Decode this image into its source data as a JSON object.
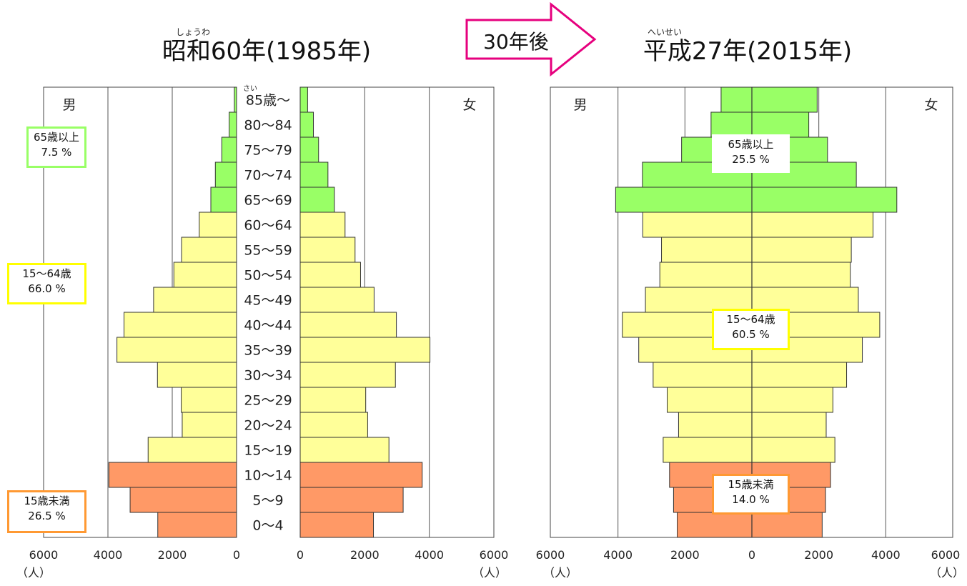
{
  "title_1985": {
    "ruby": "しょうわ",
    "text": "昭和60年(1985年)"
  },
  "title_2015": {
    "ruby": "へいせい",
    "text": "平成27年(2015年)"
  },
  "arrow_label": "30年後",
  "colors": {
    "senior": "#99ff66",
    "working": "#ffff99",
    "child": "#ff9966",
    "box_senior": "#99ff66",
    "box_working": "#ffff00",
    "box_child": "#ff9933",
    "arrow": "#e6007e"
  },
  "age_ruby": "さい",
  "chart_data": [
    {
      "type": "bar",
      "title": "昭和60年(1985年)",
      "orientation": "horizontal population pyramid",
      "categories": [
        "0〜4",
        "5〜9",
        "10〜14",
        "15〜19",
        "20〜24",
        "25〜29",
        "30〜34",
        "35〜39",
        "40〜44",
        "45〜49",
        "50〜54",
        "55〜59",
        "60〜64",
        "65〜69",
        "70〜74",
        "75〜79",
        "80〜84",
        "85歳〜"
      ],
      "series": [
        {
          "name": "男",
          "values": [
            2450,
            3310,
            3970,
            2750,
            1690,
            1720,
            2460,
            3720,
            3500,
            2580,
            1950,
            1710,
            1160,
            800,
            660,
            460,
            230,
            70
          ]
        },
        {
          "name": "女",
          "values": [
            2270,
            3190,
            3780,
            2750,
            2090,
            2030,
            2950,
            4020,
            2980,
            2290,
            1870,
            1700,
            1390,
            1060,
            860,
            570,
            410,
            230
          ]
        }
      ],
      "xlim": [
        0,
        6000
      ],
      "xticks": [
        "6000",
        "4000",
        "2000",
        "0",
        "0",
        "2000",
        "4000",
        "6000"
      ],
      "unit": "（人）",
      "side_labels": [
        "男",
        "女"
      ],
      "grid": true,
      "group_boxes": [
        {
          "line1": "65歳以上",
          "line2": "7.5 %"
        },
        {
          "line1": "15〜64歳",
          "line2": "66.0 %"
        },
        {
          "line1": "15歳未満",
          "line2": "26.5 %"
        }
      ]
    },
    {
      "type": "bar",
      "title": "平成27年(2015年)",
      "orientation": "horizontal population pyramid",
      "categories": [
        "0〜4",
        "5〜9",
        "10〜14",
        "15〜19",
        "20〜24",
        "25〜29",
        "30〜34",
        "35〜39",
        "40〜44",
        "45〜49",
        "50〜54",
        "55〜59",
        "60〜64",
        "65〜69",
        "70〜74",
        "75〜79",
        "80〜84",
        "85歳〜"
      ],
      "series": [
        {
          "name": "男",
          "values": [
            2230,
            2340,
            2460,
            2650,
            2190,
            2530,
            2950,
            3380,
            3870,
            3180,
            2750,
            2700,
            3260,
            4070,
            3270,
            2100,
            1220,
            920
          ]
        },
        {
          "name": "女",
          "values": [
            2100,
            2200,
            2350,
            2480,
            2220,
            2420,
            2830,
            3300,
            3820,
            3180,
            2940,
            2970,
            3620,
            4330,
            3120,
            2260,
            1700,
            1950
          ]
        }
      ],
      "xlim": [
        0,
        6000
      ],
      "xticks": [
        "6000",
        "4000",
        "2000",
        "0",
        "2000",
        "4000",
        "6000"
      ],
      "unit": "（人）",
      "side_labels": [
        "男",
        "女"
      ],
      "grid": true,
      "group_boxes": [
        {
          "line1": "65歳以上",
          "line2": "25.5 %"
        },
        {
          "line1": "15〜64歳",
          "line2": "60.5 %"
        },
        {
          "line1": "15歳未満",
          "line2": "14.0 %"
        }
      ]
    }
  ]
}
